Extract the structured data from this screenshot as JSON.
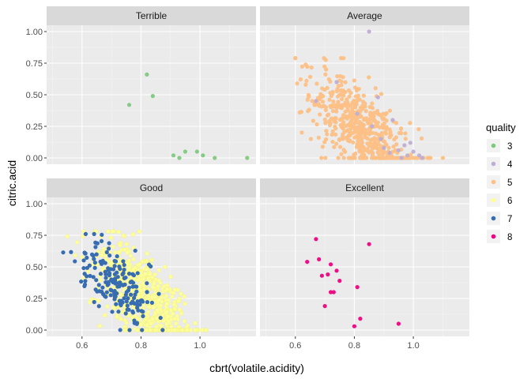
{
  "chart_data": {
    "type": "scatter",
    "facets": [
      "Terrible",
      "Average",
      "Good",
      "Excellent"
    ],
    "xlabel": "cbrt(volatile.acidity)",
    "ylabel": "citric.acid",
    "xlim": [
      0.48,
      1.19
    ],
    "ylim": [
      -0.05,
      1.05
    ],
    "xticks": [
      0.6,
      0.8,
      1.0
    ],
    "xtick_labels": [
      "0.6",
      "0.8",
      "1.0"
    ],
    "yticks": [
      0,
      0.25,
      0.5,
      0.75,
      1.0
    ],
    "ytick_labels": [
      "0.00",
      "0.25",
      "0.50",
      "0.75",
      "1.00"
    ],
    "grid": true,
    "legend": {
      "title": "quality",
      "position": "right",
      "entries": [
        {
          "label": "3",
          "color": "#7fc97f"
        },
        {
          "label": "4",
          "color": "#beaed4"
        },
        {
          "label": "5",
          "color": "#fdc086"
        },
        {
          "label": "6",
          "color": "#ffff99"
        },
        {
          "label": "7",
          "color": "#386cb0"
        },
        {
          "label": "8",
          "color": "#f0027f"
        }
      ]
    },
    "series": [
      {
        "facet": "Terrible",
        "quality": "3",
        "color": "#7fc97f",
        "x": [
          0.82,
          0.76,
          0.84,
          0.91,
          0.93,
          0.95,
          0.99,
          1.01,
          1.05,
          1.16
        ],
        "y": [
          0.66,
          0.42,
          0.49,
          0.02,
          0.0,
          0.05,
          0.05,
          0.02,
          0.0,
          0.0
        ]
      },
      {
        "facet": "Average",
        "quality": "5",
        "color": "#fdc086",
        "n": 560,
        "x_mean": 0.82,
        "x_sd": 0.085,
        "y_mean": 0.24,
        "y_sd": 0.17,
        "x_range": [
          0.6,
          1.1
        ],
        "y_range": [
          0.0,
          0.79
        ]
      },
      {
        "facet": "Average",
        "quality": "4",
        "color": "#beaed4",
        "x": [
          0.85,
          0.67,
          0.88,
          0.93,
          0.97,
          0.99,
          1.0,
          1.02,
          0.89,
          0.9,
          0.81,
          0.92,
          0.98,
          0.86,
          0.74,
          0.95,
          0.96,
          1.03
        ],
        "y": [
          1.0,
          0.45,
          0.48,
          0.3,
          0.1,
          0.12,
          0.05,
          0.02,
          0.15,
          0.08,
          0.35,
          0.04,
          0.02,
          0.25,
          0.6,
          0.06,
          0.0,
          0.0
        ]
      },
      {
        "facet": "Good",
        "quality": "6",
        "color": "#ffff99",
        "n": 600,
        "x_mean": 0.8,
        "x_sd": 0.085,
        "y_mean": 0.27,
        "y_sd": 0.18,
        "x_range": [
          0.55,
          1.02
        ],
        "y_range": [
          0.0,
          0.78
        ]
      },
      {
        "facet": "Good",
        "quality": "7",
        "color": "#386cb0",
        "n": 180,
        "x_mean": 0.71,
        "x_sd": 0.065,
        "y_mean": 0.38,
        "y_sd": 0.14,
        "x_range": [
          0.49,
          0.97
        ],
        "y_range": [
          0.0,
          0.76
        ]
      },
      {
        "facet": "Excellent",
        "quality": "8",
        "color": "#f0027f",
        "x": [
          0.67,
          0.64,
          0.68,
          0.69,
          0.71,
          0.72,
          0.74,
          0.72,
          0.75,
          0.81,
          0.85,
          0.8,
          0.82,
          0.95,
          0.7,
          0.73
        ],
        "y": [
          0.72,
          0.54,
          0.56,
          0.43,
          0.44,
          0.52,
          0.47,
          0.3,
          0.39,
          0.34,
          0.68,
          0.03,
          0.09,
          0.05,
          0.19,
          0.3
        ]
      }
    ]
  }
}
